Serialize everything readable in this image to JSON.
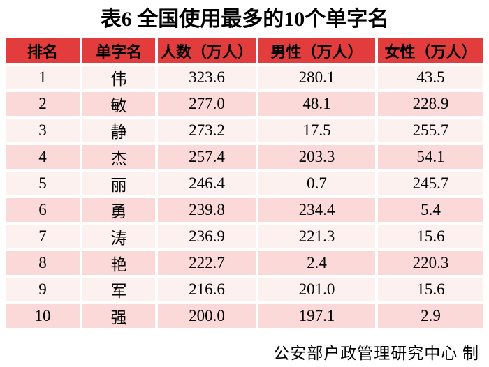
{
  "chart_data": {
    "type": "table",
    "title": "表6 全国使用最多的10个单字名",
    "columns": [
      "排名",
      "单字名",
      "人数（万人）",
      "男性（万人）",
      "女性（万人）"
    ],
    "rows": [
      [
        "1",
        "伟",
        "323.6",
        "280.1",
        "43.5"
      ],
      [
        "2",
        "敏",
        "277.0",
        "48.1",
        "228.9"
      ],
      [
        "3",
        "静",
        "273.2",
        "17.5",
        "255.7"
      ],
      [
        "4",
        "杰",
        "257.4",
        "203.3",
        "54.1"
      ],
      [
        "5",
        "丽",
        "246.4",
        "0.7",
        "245.7"
      ],
      [
        "6",
        "勇",
        "239.8",
        "234.4",
        "5.4"
      ],
      [
        "7",
        "涛",
        "236.9",
        "221.3",
        "15.6"
      ],
      [
        "8",
        "艳",
        "222.7",
        "2.4",
        "220.3"
      ],
      [
        "9",
        "军",
        "216.6",
        "201.0",
        "15.6"
      ],
      [
        "10",
        "强",
        "200.0",
        "197.1",
        "2.9"
      ]
    ],
    "source_note": "公安部户政管理研究中心 制",
    "layout": {
      "grid": "off",
      "row_striping": "alternating pink",
      "cell_alignment": "center"
    }
  },
  "colors": {
    "header_bg": "#e23c3c",
    "row_light": "#fdf1ef",
    "row_dark": "#fbd9d9",
    "text": "#000000",
    "page_bg": "#ffffff"
  }
}
